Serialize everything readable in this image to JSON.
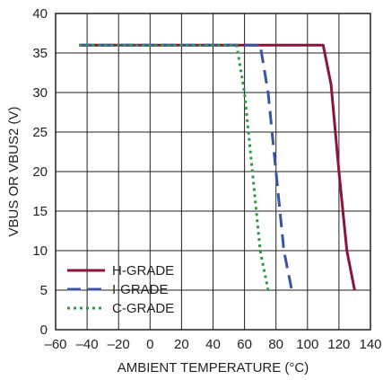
{
  "chart_data": {
    "type": "line",
    "title": "",
    "xlabel": "AMBIENT TEMPERATURE (°C)",
    "ylabel": "VBUS OR VBUS2 (V)",
    "xlim": [
      -60,
      140
    ],
    "ylim": [
      0,
      40
    ],
    "xticks": [
      -60,
      -40,
      -20,
      0,
      20,
      40,
      60,
      80,
      100,
      120,
      140
    ],
    "yticks": [
      0,
      5,
      10,
      15,
      20,
      25,
      30,
      35,
      40
    ],
    "xtick_labels": [
      "–60",
      "–40",
      "–20",
      "0",
      "20",
      "40",
      "60",
      "80",
      "100",
      "120",
      "140"
    ],
    "ytick_labels": [
      "0",
      "5",
      "10",
      "15",
      "20",
      "25",
      "30",
      "35",
      "40"
    ],
    "grid": true,
    "legend_position": "bottom-left",
    "series": [
      {
        "name": "H-GRADE",
        "color": "#8b1538",
        "style": "solid",
        "x": [
          -45,
          110,
          115,
          120,
          125,
          130
        ],
        "y": [
          36,
          36,
          31,
          20,
          10,
          5
        ]
      },
      {
        "name": "I-GRADE",
        "color": "#3a53a4",
        "style": "dashed",
        "x": [
          -45,
          70,
          75,
          80,
          85,
          90
        ],
        "y": [
          36,
          36,
          30,
          20,
          10,
          5
        ]
      },
      {
        "name": "C-GRADE",
        "color": "#2e9a48",
        "style": "dotted",
        "x": [
          -45,
          55,
          60,
          65,
          70,
          75
        ],
        "y": [
          36,
          36,
          30,
          20,
          10,
          5
        ]
      }
    ]
  }
}
